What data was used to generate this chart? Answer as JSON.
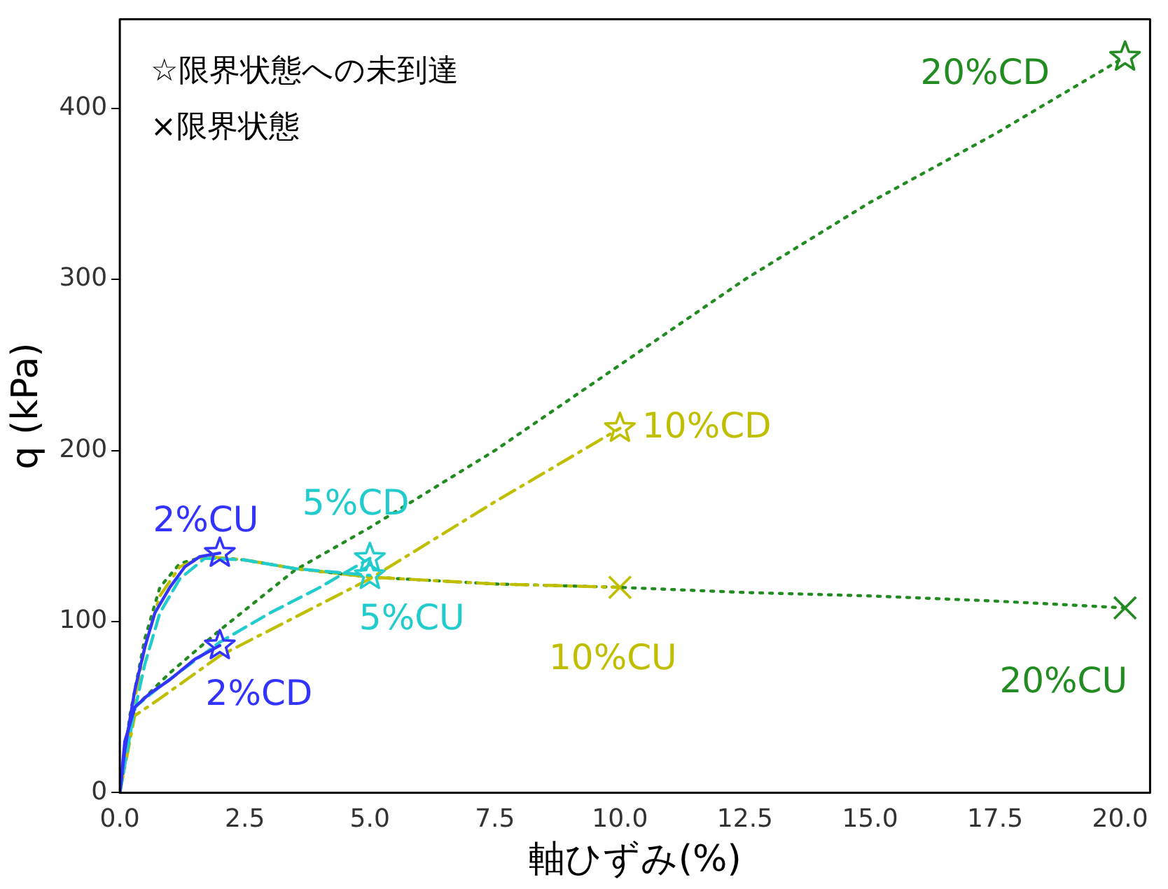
{
  "chart_data": {
    "type": "line",
    "xlabel": "軸ひずみ(%)",
    "ylabel": "q (kPa)",
    "annotations": [
      "☆限界状態への未到達",
      "×限界状態"
    ],
    "xlim": [
      0,
      20.6
    ],
    "ylim": [
      0,
      452
    ],
    "xticks": [
      {
        "value": 0,
        "label": "0.0"
      },
      {
        "value": 2.5,
        "label": "2.5"
      },
      {
        "value": 5,
        "label": "5.0"
      },
      {
        "value": 7.5,
        "label": "7.5"
      },
      {
        "value": 10,
        "label": "10.0"
      },
      {
        "value": 12.5,
        "label": "12.5"
      },
      {
        "value": 15,
        "label": "15.0"
      },
      {
        "value": 17.5,
        "label": "17.5"
      },
      {
        "value": 20,
        "label": "20.0"
      }
    ],
    "yticks": [
      0,
      100,
      200,
      300,
      400
    ],
    "grid": false,
    "legend": false,
    "series": [
      {
        "name": "2%CU",
        "color": "#3333ff",
        "line_style": "solid",
        "marker": "none",
        "x": [
          0,
          0.1,
          0.3,
          0.5,
          0.7,
          1.0,
          1.3,
          1.6,
          2.0
        ],
        "values": [
          0,
          25,
          60,
          85,
          105,
          120,
          132,
          138,
          140
        ]
      },
      {
        "name": "2%CD",
        "color": "#3333ff",
        "line_style": "solid",
        "marker": "none",
        "x": [
          0,
          0.1,
          0.3,
          0.6,
          1.0,
          1.5,
          2.0
        ],
        "values": [
          0,
          30,
          50,
          58,
          66,
          78,
          86
        ]
      },
      {
        "name": "5%CU",
        "color": "#22cccc",
        "line_style": "dashed",
        "marker": "none",
        "x": [
          0,
          0.2,
          0.5,
          0.8,
          1.2,
          1.7,
          2.5,
          3.5,
          5.0
        ],
        "values": [
          0,
          35,
          75,
          105,
          125,
          137,
          136,
          131,
          127
        ]
      },
      {
        "name": "5%CD",
        "color": "#22cccc",
        "line_style": "dashed",
        "marker": "none",
        "x": [
          0,
          0.3,
          0.8,
          2.0,
          3.0,
          4.0,
          5.0
        ],
        "values": [
          0,
          50,
          62,
          88,
          105,
          120,
          137
        ]
      },
      {
        "name": "10%CU",
        "color": "#bfbf00",
        "line_style": "dashdot",
        "marker": "none",
        "x": [
          0,
          0.2,
          0.5,
          0.8,
          1.2,
          1.7,
          2.5,
          3.5,
          5.0,
          7.5,
          10.0
        ],
        "values": [
          0,
          40,
          85,
          115,
          132,
          138,
          136,
          131,
          126,
          122,
          120
        ]
      },
      {
        "name": "10%CD",
        "color": "#bfbf00",
        "line_style": "dashdot",
        "marker": "none",
        "x": [
          0,
          0.3,
          0.8,
          2.0,
          5.0,
          7.5,
          10.0
        ],
        "values": [
          0,
          45,
          55,
          80,
          125,
          170,
          213
        ]
      },
      {
        "name": "20%CU",
        "color": "#228b22",
        "line_style": "dotted",
        "marker": "none",
        "x": [
          0,
          0.2,
          0.5,
          0.8,
          1.2,
          1.7,
          2.5,
          3.5,
          5.0,
          7.5,
          10.0,
          12.5,
          15.0,
          17.5,
          20.1
        ],
        "values": [
          0,
          45,
          90,
          120,
          134,
          138,
          136,
          131,
          126,
          122,
          120,
          117,
          115,
          112,
          108
        ]
      },
      {
        "name": "20%CD",
        "color": "#228b22",
        "line_style": "dotted",
        "marker": "none",
        "x": [
          0,
          0.3,
          1.0,
          2.0,
          3.5,
          5.0,
          7.5,
          10.0,
          12.5,
          15.0,
          17.5,
          20.1
        ],
        "values": [
          0,
          50,
          70,
          95,
          130,
          155,
          200,
          250,
          300,
          345,
          385,
          430
        ]
      },
      {
        "type": "scatter",
        "marker": "star",
        "x": [
          2.0,
          2.0,
          5.0,
          5.0,
          10.0,
          20.1
        ],
        "values": [
          140,
          86,
          127,
          137,
          213,
          430
        ],
        "colors": [
          "#3333ff",
          "#3333ff",
          "#22cccc",
          "#22cccc",
          "#bfbf00",
          "#228b22"
        ]
      },
      {
        "type": "scatter",
        "marker": "cross",
        "x": [
          10.0,
          20.1
        ],
        "values": [
          120,
          108
        ],
        "colors": [
          "#bfbf00",
          "#228b22"
        ]
      }
    ]
  }
}
